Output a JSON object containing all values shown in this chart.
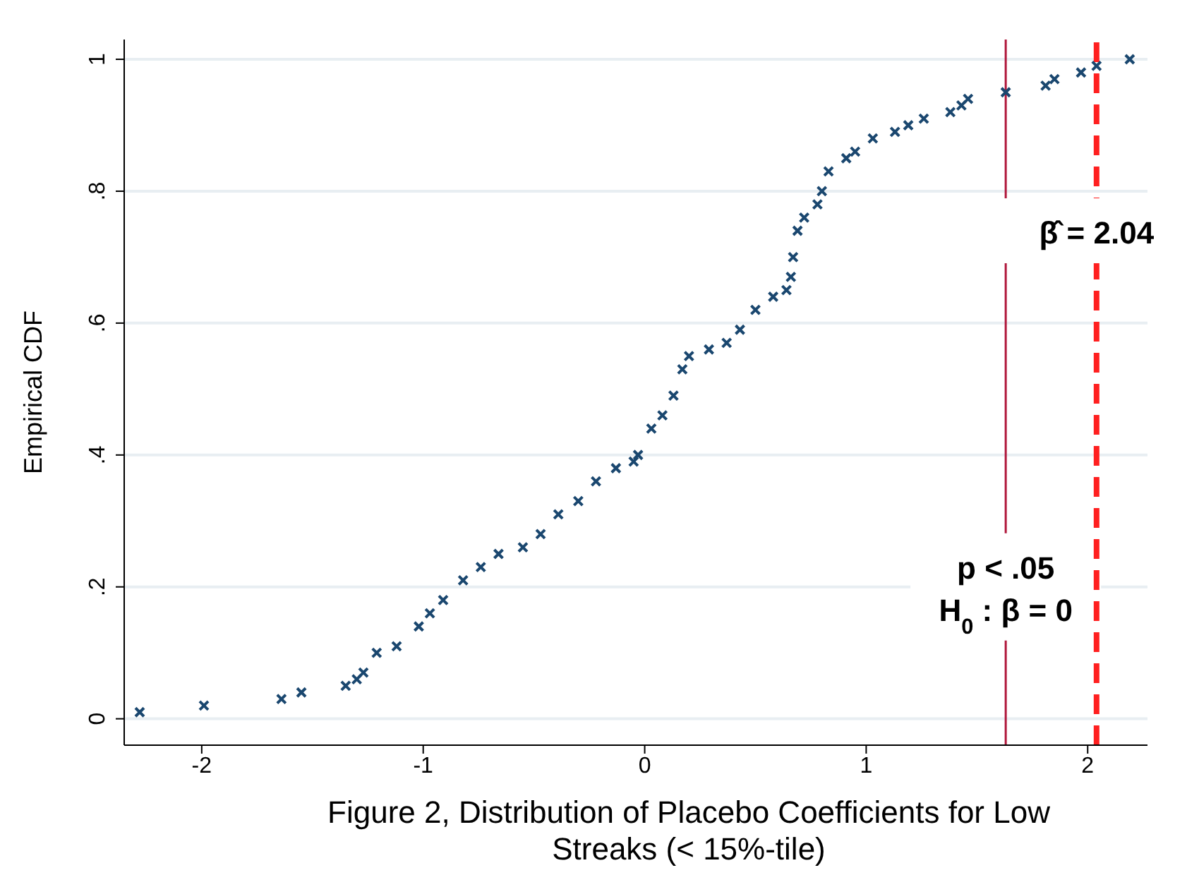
{
  "chart_data": {
    "type": "scatter",
    "title": "Figure 2, Distribution of Placebo Coefficients for Low Streaks (< 15%-tile)",
    "ylabel": "Empirical CDF",
    "x": [
      -2.28,
      -1.99,
      -1.64,
      -1.55,
      -1.35,
      -1.3,
      -1.27,
      -1.21,
      -1.12,
      -1.02,
      -0.97,
      -0.91,
      -0.82,
      -0.74,
      -0.66,
      -0.55,
      -0.47,
      -0.39,
      -0.3,
      -0.22,
      -0.13,
      -0.05,
      -0.03,
      0.03,
      0.08,
      0.13,
      0.17,
      0.2,
      0.29,
      0.37,
      0.43,
      0.5,
      0.58,
      0.64,
      0.66,
      0.67,
      0.69,
      0.72,
      0.78,
      0.8,
      0.83,
      0.91,
      0.95,
      1.03,
      1.13,
      1.19,
      1.26,
      1.38,
      1.43,
      1.46,
      1.63,
      1.81,
      1.85,
      1.97,
      2.04,
      2.19
    ],
    "series": [
      {
        "color": "#1a476f",
        "values": [
          0.01,
          0.02,
          0.03,
          0.04,
          0.05,
          0.06,
          0.07,
          0.1,
          0.11,
          0.14,
          0.16,
          0.18,
          0.21,
          0.23,
          0.25,
          0.26,
          0.28,
          0.31,
          0.33,
          0.36,
          0.38,
          0.39,
          0.4,
          0.44,
          0.46,
          0.49,
          0.53,
          0.55,
          0.56,
          0.57,
          0.59,
          0.62,
          0.64,
          0.65,
          0.67,
          0.7,
          0.74,
          0.76,
          0.78,
          0.8,
          0.83,
          0.85,
          0.86,
          0.88,
          0.89,
          0.9,
          0.91,
          0.92,
          0.93,
          0.94,
          0.95,
          0.96,
          0.97,
          0.98,
          0.99,
          1.0
        ]
      }
    ],
    "xlim": [
      -2.35,
      2.27
    ],
    "xticks": [
      -2,
      -1,
      0,
      1,
      2
    ],
    "ylim": [
      -0.04,
      1.03
    ],
    "yticks": [
      0,
      {
        "value": 0.2,
        "label": ".2"
      },
      {
        "value": 0.4,
        "label": ".4"
      },
      {
        "value": 0.6,
        "label": ".6"
      },
      {
        "value": 0.8,
        "label": ".8"
      },
      1
    ],
    "grid": "y",
    "marker": "cross",
    "annotations": [
      "p < .05\nH$_{0}$ : β = 0"
    ],
    "ref_lines": [
      {
        "axis": "x",
        "value": 1.63,
        "color": "#b0183c",
        "line_style": "solid"
      },
      {
        "axis": "x",
        "value": 2.04,
        "label": "β̂ = 2.04",
        "color": "#ff2020",
        "line_style": "dashed"
      }
    ]
  }
}
